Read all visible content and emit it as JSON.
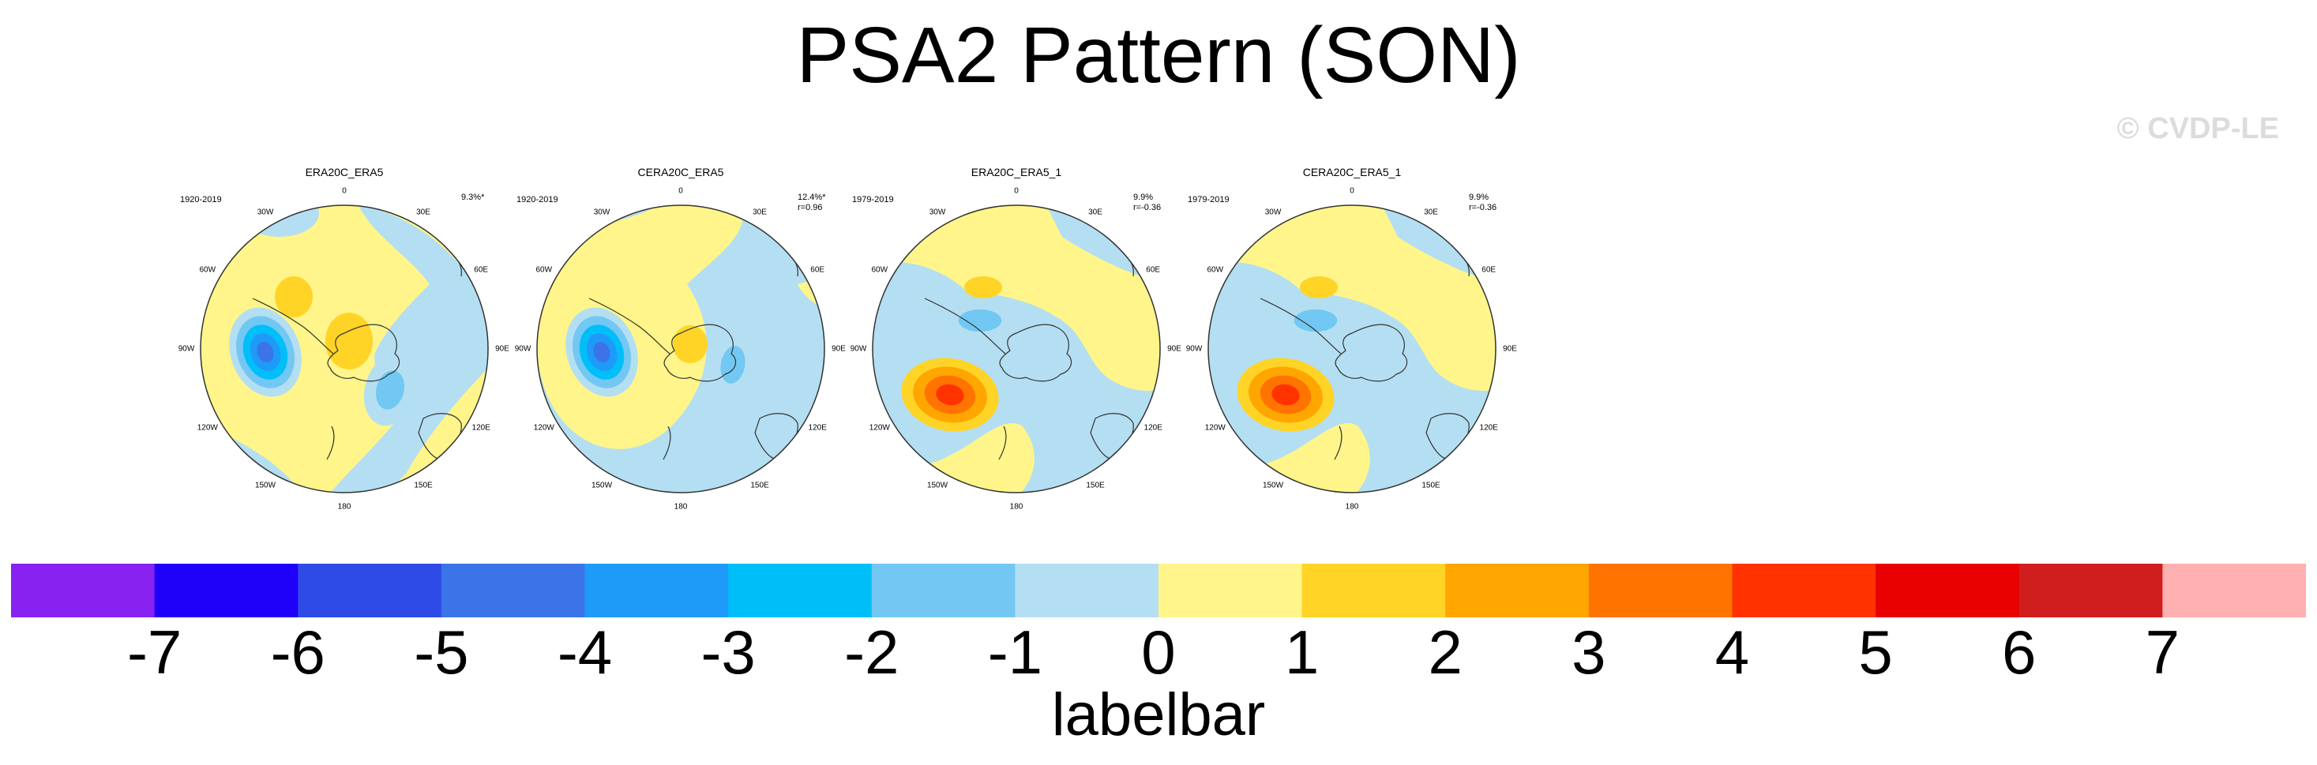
{
  "title": "PSA2 Pattern (SON)",
  "watermark": "© CVDP-LE",
  "panels": [
    {
      "title": "ERA20C_ERA5",
      "years": "1920-2019",
      "stat1": "9.3%*",
      "stat2": "",
      "variant": "era20c"
    },
    {
      "title": "CERA20C_ERA5",
      "years": "1920-2019",
      "stat1": "12.4%*",
      "stat2": "r=0.96",
      "variant": "cera"
    },
    {
      "title": "ERA20C_ERA5_1",
      "years": "1979-2019",
      "stat1": "9.9%",
      "stat2": "r=-0.36",
      "variant": "recent"
    },
    {
      "title": "CERA20C_ERA5_1",
      "years": "1979-2019",
      "stat1": "9.9%",
      "stat2": "r=-0.36",
      "variant": "recent"
    }
  ],
  "longitudes": [
    "0",
    "30E",
    "60E",
    "90E",
    "120E",
    "150E",
    "180",
    "150W",
    "120W",
    "90W",
    "60W",
    "30W"
  ],
  "colorbar": {
    "label": "labelbar",
    "ticks": [
      "-7",
      "-6",
      "-5",
      "-4",
      "-3",
      "-2",
      "-1",
      "0",
      "1",
      "2",
      "3",
      "4",
      "5",
      "6",
      "7"
    ],
    "colors": [
      "#8722f0",
      "#1f00f8",
      "#2e4be8",
      "#3a74e8",
      "#1e9bf8",
      "#00bff8",
      "#72c8f2",
      "#b4dff2",
      "#fff58a",
      "#ffd426",
      "#ffa600",
      "#ff7400",
      "#ff3200",
      "#e80000",
      "#d01e1e",
      "#ffb0b0"
    ]
  }
}
